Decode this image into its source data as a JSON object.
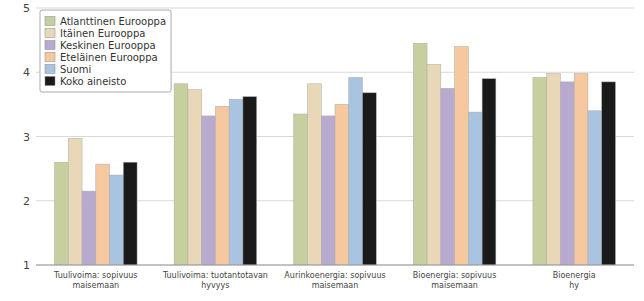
{
  "chart_data": {
    "type": "bar",
    "categories": [
      "Tuulivoima: sopivuus\nmaisemaan",
      "Tuulivoima: tuotantotavan\nhyvyys",
      "Aurinkoenergia: sopivuus\nmaisemaan",
      "Bioenergia: sopivuus\nmaisemaan",
      "Bioenergia\nhy"
    ],
    "series": [
      {
        "name": "Atlanttinen Eurooppa",
        "color": "#c8cf9e",
        "values": [
          2.6,
          3.82,
          3.35,
          4.45,
          3.92
        ]
      },
      {
        "name": "Itäinen Eurooppa",
        "color": "#e8d8b8",
        "values": [
          2.97,
          3.73,
          3.82,
          4.12,
          3.98
        ]
      },
      {
        "name": "Keskinen Eurooppa",
        "color": "#b8aacf",
        "values": [
          2.15,
          3.32,
          3.32,
          3.75,
          3.85
        ]
      },
      {
        "name": "Eteläinen Eurooppa",
        "color": "#f5c8a0",
        "values": [
          2.57,
          3.47,
          3.5,
          4.4,
          3.98
        ]
      },
      {
        "name": "Suomi",
        "color": "#a8c4e0",
        "values": [
          2.4,
          3.58,
          3.92,
          3.38,
          3.4
        ]
      },
      {
        "name": "Koko aineisto",
        "color": "#1a1a1a",
        "values": [
          2.6,
          3.62,
          3.68,
          3.9,
          3.85
        ]
      }
    ],
    "ylim": [
      1,
      5
    ],
    "yticks": [
      1,
      2,
      3,
      4,
      5
    ],
    "grid": true,
    "legend": "upper left"
  }
}
